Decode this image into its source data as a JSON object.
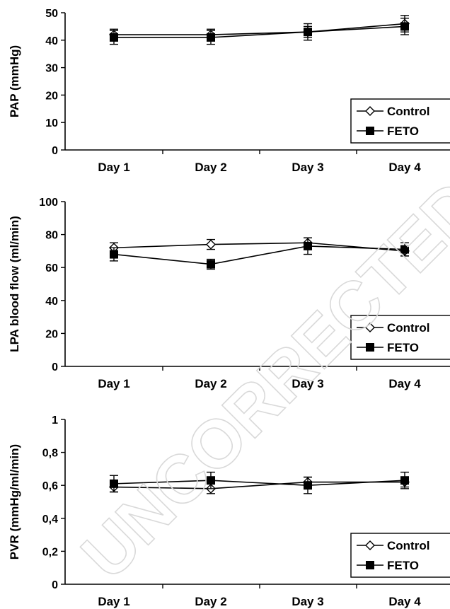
{
  "watermark": "UNCORRECTED",
  "colors": {
    "line": "#000000",
    "background": "#ffffff",
    "watermark": "#d9d9d9"
  },
  "chart_data": [
    {
      "type": "line",
      "ylabel": "PAP (mmHg)",
      "categories": [
        "Day 1",
        "Day 2",
        "Day 3",
        "Day 4"
      ],
      "ylim": [
        0,
        50
      ],
      "yticks": [
        "0",
        "10",
        "20",
        "30",
        "40",
        "50"
      ],
      "yticks_values": [
        0,
        10,
        20,
        30,
        40,
        50
      ],
      "legend_position": "bottom-right",
      "series": [
        {
          "name": "Control",
          "marker": "open-diamond",
          "values": [
            42,
            42,
            43,
            46
          ],
          "errors": [
            2,
            2,
            2,
            3
          ]
        },
        {
          "name": "FETO",
          "marker": "filled-square",
          "values": [
            41,
            41,
            43,
            45
          ],
          "errors": [
            2.5,
            2.5,
            3,
            3
          ]
        }
      ]
    },
    {
      "type": "line",
      "ylabel": "LPA blood flow (ml/min)",
      "categories": [
        "Day 1",
        "Day 2",
        "Day 3",
        "Day 4"
      ],
      "ylim": [
        0,
        100
      ],
      "yticks": [
        "0",
        "20",
        "40",
        "60",
        "80",
        "100"
      ],
      "yticks_values": [
        0,
        20,
        40,
        60,
        80,
        100
      ],
      "legend_position": "bottom-right",
      "series": [
        {
          "name": "Control",
          "marker": "open-diamond",
          "values": [
            72,
            74,
            75,
            70
          ],
          "errors": [
            3,
            3,
            3,
            3
          ]
        },
        {
          "name": "FETO",
          "marker": "filled-square",
          "values": [
            68,
            62,
            73,
            71
          ],
          "errors": [
            4,
            3,
            5,
            4
          ]
        }
      ]
    },
    {
      "type": "line",
      "ylabel": "PVR (mmHg/ml/min)",
      "categories": [
        "Day 1",
        "Day 2",
        "Day 3",
        "Day 4"
      ],
      "ylim": [
        0,
        1
      ],
      "yticks": [
        "0",
        "0,2",
        "0,4",
        "0,6",
        "0,8",
        "1"
      ],
      "yticks_values": [
        0,
        0.2,
        0.4,
        0.6,
        0.8,
        1
      ],
      "legend_position": "bottom-right",
      "series": [
        {
          "name": "Control",
          "marker": "open-diamond",
          "values": [
            0.59,
            0.58,
            0.62,
            0.62
          ],
          "errors": [
            0.03,
            0.03,
            0.03,
            0.03
          ]
        },
        {
          "name": "FETO",
          "marker": "filled-square",
          "values": [
            0.61,
            0.63,
            0.6,
            0.63
          ],
          "errors": [
            0.05,
            0.05,
            0.05,
            0.05
          ]
        }
      ]
    }
  ]
}
